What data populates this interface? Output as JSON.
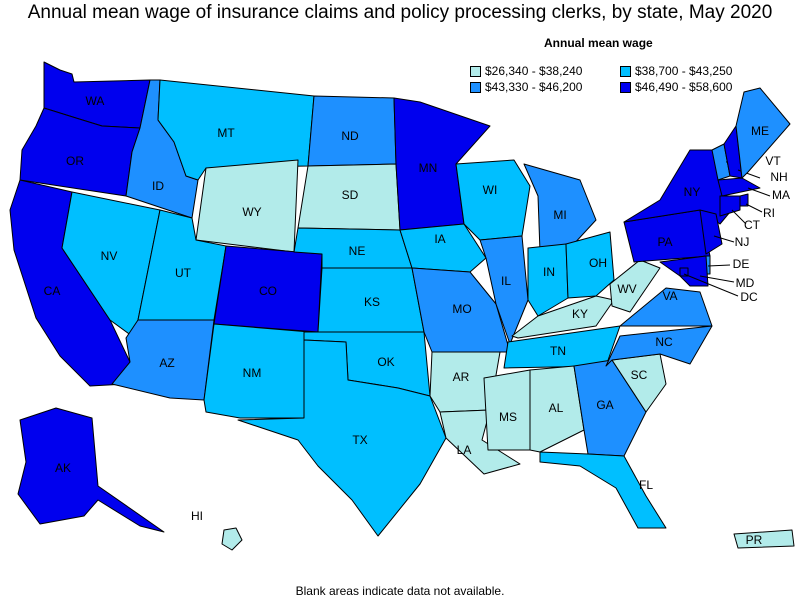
{
  "title": "Annual mean wage of insurance claims and policy processing clerks, by state, May 2020",
  "legend": {
    "title": "Annual mean wage",
    "items": [
      {
        "label": "$26,340 - $38,240",
        "color": "#b2ebea"
      },
      {
        "label": "$38,700 - $43,250",
        "color": "#00bfff"
      },
      {
        "label": "$43,330 - $46,200",
        "color": "#1e90ff"
      },
      {
        "label": "$46,490 - $58,600",
        "color": "#0000ee"
      }
    ]
  },
  "footnote": "Blank areas indicate data not available.",
  "states": [
    {
      "abbr": "WA",
      "class": 3
    },
    {
      "abbr": "OR",
      "class": 3
    },
    {
      "abbr": "CA",
      "class": 3
    },
    {
      "abbr": "ID",
      "class": 2
    },
    {
      "abbr": "NV",
      "class": 1
    },
    {
      "abbr": "MT",
      "class": 1
    },
    {
      "abbr": "WY",
      "class": 0
    },
    {
      "abbr": "UT",
      "class": 1
    },
    {
      "abbr": "AZ",
      "class": 2
    },
    {
      "abbr": "CO",
      "class": 3
    },
    {
      "abbr": "NM",
      "class": 1
    },
    {
      "abbr": "ND",
      "class": 2
    },
    {
      "abbr": "SD",
      "class": 0
    },
    {
      "abbr": "NE",
      "class": 1
    },
    {
      "abbr": "KS",
      "class": 1
    },
    {
      "abbr": "OK",
      "class": 1
    },
    {
      "abbr": "TX",
      "class": 1
    },
    {
      "abbr": "MN",
      "class": 3
    },
    {
      "abbr": "IA",
      "class": 1
    },
    {
      "abbr": "MO",
      "class": 2
    },
    {
      "abbr": "AR",
      "class": 0
    },
    {
      "abbr": "LA",
      "class": 0
    },
    {
      "abbr": "WI",
      "class": 1
    },
    {
      "abbr": "IL",
      "class": 2
    },
    {
      "abbr": "MI",
      "class": 2
    },
    {
      "abbr": "IN",
      "class": 1
    },
    {
      "abbr": "OH",
      "class": 1
    },
    {
      "abbr": "KY",
      "class": 0
    },
    {
      "abbr": "TN",
      "class": 1
    },
    {
      "abbr": "MS",
      "class": 0
    },
    {
      "abbr": "AL",
      "class": 0
    },
    {
      "abbr": "GA",
      "class": 2
    },
    {
      "abbr": "FL",
      "class": 1
    },
    {
      "abbr": "SC",
      "class": 0
    },
    {
      "abbr": "NC",
      "class": 2
    },
    {
      "abbr": "VA",
      "class": 2
    },
    {
      "abbr": "WV",
      "class": 0
    },
    {
      "abbr": "PA",
      "class": 3
    },
    {
      "abbr": "NY",
      "class": 3
    },
    {
      "abbr": "VT",
      "class": 2
    },
    {
      "abbr": "NH",
      "class": 3
    },
    {
      "abbr": "ME",
      "class": 2
    },
    {
      "abbr": "MA",
      "class": 3
    },
    {
      "abbr": "RI",
      "class": 3
    },
    {
      "abbr": "CT",
      "class": 3
    },
    {
      "abbr": "NJ",
      "class": 3
    },
    {
      "abbr": "DE",
      "class": 2
    },
    {
      "abbr": "MD",
      "class": 3
    },
    {
      "abbr": "DC",
      "class": 3
    },
    {
      "abbr": "AK",
      "class": 3
    },
    {
      "abbr": "HI",
      "class": 0
    },
    {
      "abbr": "PR",
      "class": 0
    }
  ]
}
